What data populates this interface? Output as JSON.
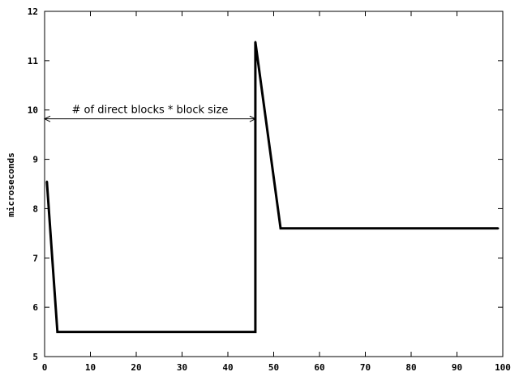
{
  "chart_data": {
    "type": "line",
    "title": "",
    "xlabel": "",
    "ylabel": "microseconds",
    "xlim": [
      0,
      100
    ],
    "ylim": [
      5,
      12
    ],
    "xticks": [
      0,
      10,
      20,
      30,
      40,
      50,
      60,
      70,
      80,
      90,
      100
    ],
    "yticks": [
      5,
      6,
      7,
      8,
      9,
      10,
      11,
      12
    ],
    "grid": false,
    "legend": "none",
    "series": [
      {
        "color": "#000000",
        "x": [
          0.5,
          2.8,
          46,
          46,
          51.5,
          99
        ],
        "y": [
          8.55,
          5.5,
          5.5,
          11.38,
          7.6,
          7.6
        ]
      }
    ],
    "annotations": [
      {
        "text": "# of direct blocks * block size",
        "arrow": "double",
        "x_from": 0,
        "x_to": 46,
        "y": 9.82
      }
    ]
  }
}
